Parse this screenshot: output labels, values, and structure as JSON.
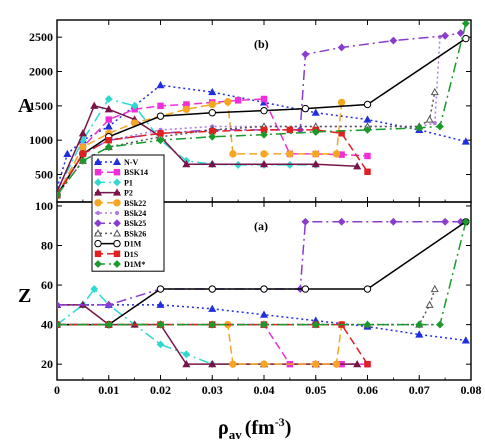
{
  "chart_data": [
    {
      "panel": "(b)",
      "type": "line",
      "xlabel_main": "ρ",
      "xlabel_sub": "av",
      "xlabel_unit": "(fm",
      "xlabel_exp": "-3",
      "xlabel_close": ")",
      "ylabel": "A",
      "xlim": [
        0,
        0.08
      ],
      "ylim": [
        100,
        2750
      ],
      "xticks": [
        0,
        0.01,
        0.02,
        0.03,
        0.04,
        0.05,
        0.06,
        0.07,
        0.08
      ],
      "xtick_labels": [
        "0",
        "0.01",
        "0.02",
        "0.03",
        "0.04",
        "0.05",
        "0.06",
        "0.07",
        "0.08"
      ],
      "yticks": [
        500,
        1000,
        1500,
        2000,
        2500
      ],
      "ytick_labels": [
        "500",
        "1000",
        "1500",
        "2000",
        "2500"
      ],
      "grid": false,
      "legend": "left-middle",
      "series": [
        {
          "name": "N-V",
          "color": "#1f2fe0",
          "marker": "triangle",
          "dash": "2,3",
          "x": [
            0,
            0.002,
            0.005,
            0.01,
            0.015,
            0.02,
            0.03,
            0.04,
            0.05,
            0.06,
            0.07,
            0.079
          ],
          "y": [
            300,
            800,
            1000,
            1200,
            1500,
            1800,
            1700,
            1550,
            1400,
            1300,
            1150,
            980
          ]
        },
        {
          "name": "BSK14",
          "color": "#f02fd8",
          "marker": "square",
          "dash": "8,4",
          "x": [
            0,
            0.005,
            0.01,
            0.015,
            0.02,
            0.025,
            0.03,
            0.035,
            0.04,
            0.045,
            0.05,
            0.055,
            0.06
          ],
          "y": [
            200,
            900,
            1300,
            1450,
            1500,
            1520,
            1550,
            1580,
            1600,
            800,
            800,
            790,
            770
          ]
        },
        {
          "name": "P1",
          "color": "#30d8d0",
          "marker": "diamond",
          "dash": "10,4,2,4",
          "x": [
            0,
            0.005,
            0.01,
            0.015,
            0.02,
            0.025,
            0.03,
            0.035,
            0.04,
            0.045,
            0.05
          ],
          "y": [
            250,
            1000,
            1600,
            1500,
            1000,
            700,
            650,
            640,
            640,
            640,
            640
          ]
        },
        {
          "name": "P2",
          "color": "#7a1448",
          "marker": "triangle",
          "dash": "",
          "x": [
            0,
            0.005,
            0.0072,
            0.01,
            0.015,
            0.02,
            0.025,
            0.03,
            0.04,
            0.05,
            0.058
          ],
          "y": [
            250,
            1100,
            1500,
            1450,
            1300,
            1050,
            650,
            650,
            650,
            650,
            620
          ]
        },
        {
          "name": "BSk22",
          "color": "#f5a623",
          "marker": "circle",
          "dash": "8,4",
          "x": [
            0,
            0.005,
            0.01,
            0.015,
            0.02,
            0.025,
            0.03,
            0.033,
            0.034,
            0.04,
            0.045,
            0.05,
            0.054,
            0.055
          ],
          "y": [
            200,
            900,
            1100,
            1250,
            1350,
            1450,
            1520,
            1560,
            800,
            800,
            800,
            800,
            800,
            1550
          ]
        },
        {
          "name": "BSk24",
          "color": "#b07ae0",
          "marker": "dot",
          "dash": "2,3",
          "x": [
            0,
            0.005,
            0.01,
            0.02,
            0.03,
            0.04,
            0.05,
            0.06,
            0.07,
            0.073,
            0.074
          ],
          "y": [
            200,
            800,
            1000,
            1150,
            1200,
            1200,
            1200,
            1200,
            1200,
            1250,
            2500
          ]
        },
        {
          "name": "BSk25",
          "color": "#8a3ccf",
          "marker": "diamond",
          "dash": "10,4,2,4",
          "x": [
            0,
            0.005,
            0.01,
            0.02,
            0.03,
            0.04,
            0.047,
            0.048,
            0.055,
            0.065,
            0.075,
            0.078
          ],
          "y": [
            200,
            800,
            1000,
            1100,
            1150,
            1150,
            1150,
            2250,
            2350,
            2450,
            2520,
            2560
          ]
        },
        {
          "name": "BSk26",
          "color": "#555555",
          "marker": "triangle-open",
          "dash": "2,3",
          "x": [
            0,
            0.005,
            0.01,
            0.02,
            0.03,
            0.04,
            0.05,
            0.06,
            0.07,
            0.072,
            0.073
          ],
          "y": [
            200,
            700,
            900,
            1050,
            1150,
            1200,
            1200,
            1200,
            1200,
            1300,
            1700
          ]
        },
        {
          "name": "D1M",
          "color": "#000000",
          "marker": "circle-open",
          "dash": "",
          "x": [
            0,
            0.005,
            0.01,
            0.02,
            0.03,
            0.04,
            0.048,
            0.06,
            0.079
          ],
          "y": [
            200,
            800,
            1050,
            1350,
            1400,
            1430,
            1460,
            1520,
            2480
          ]
        },
        {
          "name": "D1S",
          "color": "#e02020",
          "marker": "square",
          "dash": "8,4",
          "x": [
            0,
            0.005,
            0.01,
            0.02,
            0.03,
            0.04,
            0.045,
            0.05,
            0.055,
            0.06
          ],
          "y": [
            200,
            800,
            1000,
            1100,
            1130,
            1150,
            1150,
            1150,
            1100,
            540
          ]
        },
        {
          "name": "D1M*",
          "color": "#1a9a2a",
          "marker": "diamond",
          "dash": "10,4,2,4",
          "x": [
            0,
            0.005,
            0.01,
            0.02,
            0.03,
            0.04,
            0.05,
            0.06,
            0.07,
            0.074,
            0.079
          ],
          "y": [
            200,
            700,
            900,
            1000,
            1050,
            1080,
            1120,
            1150,
            1180,
            1200,
            2700
          ]
        }
      ]
    },
    {
      "panel": "(a)",
      "type": "line",
      "xlabel": "",
      "ylabel": "Z",
      "xlim": [
        0,
        0.08
      ],
      "ylim": [
        12,
        102
      ],
      "yticks": [
        20,
        40,
        60,
        80,
        100
      ],
      "ytick_labels": [
        "20",
        "40",
        "60",
        "80",
        "100"
      ],
      "grid": false,
      "series": [
        {
          "name": "N-V",
          "color": "#1f2fe0",
          "marker": "triangle",
          "dash": "2,3",
          "x": [
            0,
            0.01,
            0.02,
            0.03,
            0.04,
            0.05,
            0.06,
            0.07,
            0.079
          ],
          "y": [
            50,
            50,
            50,
            48,
            45,
            42,
            39,
            35,
            32
          ]
        },
        {
          "name": "BSK14",
          "color": "#f02fd8",
          "marker": "square",
          "dash": "8,4",
          "x": [
            0,
            0.01,
            0.02,
            0.03,
            0.04,
            0.045,
            0.05,
            0.055,
            0.06
          ],
          "y": [
            40,
            40,
            40,
            40,
            40,
            20,
            20,
            20,
            20
          ]
        },
        {
          "name": "P1",
          "color": "#30d8d0",
          "marker": "diamond",
          "dash": "10,4,2,4",
          "x": [
            0,
            0.005,
            0.0072,
            0.01,
            0.015,
            0.02,
            0.025,
            0.03,
            0.04
          ],
          "y": [
            40,
            50,
            58,
            50,
            40,
            30,
            25,
            20,
            20
          ]
        },
        {
          "name": "P2",
          "color": "#7a1448",
          "marker": "triangle",
          "dash": "",
          "x": [
            0,
            0.005,
            0.01,
            0.015,
            0.02,
            0.025,
            0.03,
            0.04,
            0.05,
            0.058
          ],
          "y": [
            50,
            50,
            40,
            40,
            40,
            20,
            20,
            20,
            20,
            20
          ]
        },
        {
          "name": "BSk22",
          "color": "#f5a623",
          "marker": "circle",
          "dash": "8,4",
          "x": [
            0,
            0.01,
            0.02,
            0.03,
            0.033,
            0.034,
            0.04,
            0.05,
            0.054,
            0.055
          ],
          "y": [
            40,
            40,
            40,
            40,
            40,
            20,
            20,
            20,
            20,
            40
          ]
        },
        {
          "name": "BSk24",
          "color": "#b07ae0",
          "marker": "dot",
          "dash": "2,3",
          "x": [
            0,
            0.01,
            0.02,
            0.03,
            0.04,
            0.05,
            0.06,
            0.07,
            0.074
          ],
          "y": [
            40,
            40,
            40,
            40,
            40,
            40,
            40,
            40,
            40
          ]
        },
        {
          "name": "BSk25",
          "color": "#8a3ccf",
          "marker": "diamond",
          "dash": "10,4,2,4",
          "x": [
            0,
            0.01,
            0.02,
            0.03,
            0.04,
            0.047,
            0.048,
            0.055,
            0.065,
            0.075,
            0.078
          ],
          "y": [
            50,
            50,
            58,
            58,
            58,
            58,
            92,
            92,
            92,
            92,
            92
          ]
        },
        {
          "name": "BSk26",
          "color": "#555555",
          "marker": "triangle-open",
          "dash": "2,3",
          "x": [
            0,
            0.01,
            0.02,
            0.03,
            0.04,
            0.05,
            0.06,
            0.07,
            0.072,
            0.073
          ],
          "y": [
            40,
            40,
            40,
            40,
            40,
            40,
            40,
            40,
            50,
            58
          ]
        },
        {
          "name": "D1M",
          "color": "#000000",
          "marker": "circle-open",
          "dash": "",
          "x": [
            0,
            0.01,
            0.02,
            0.03,
            0.04,
            0.048,
            0.06,
            0.079
          ],
          "y": [
            40,
            40,
            58,
            58,
            58,
            58,
            58,
            92
          ]
        },
        {
          "name": "D1S",
          "color": "#e02020",
          "marker": "square",
          "dash": "8,4",
          "x": [
            0,
            0.01,
            0.02,
            0.03,
            0.04,
            0.05,
            0.055,
            0.06
          ],
          "y": [
            40,
            40,
            40,
            40,
            40,
            40,
            40,
            20
          ]
        },
        {
          "name": "D1M*",
          "color": "#1a9a2a",
          "marker": "diamond",
          "dash": "10,4,2,4",
          "x": [
            0,
            0.01,
            0.02,
            0.03,
            0.04,
            0.05,
            0.06,
            0.07,
            0.074,
            0.079
          ],
          "y": [
            40,
            40,
            40,
            40,
            40,
            40,
            40,
            40,
            40,
            92
          ]
        }
      ]
    }
  ]
}
